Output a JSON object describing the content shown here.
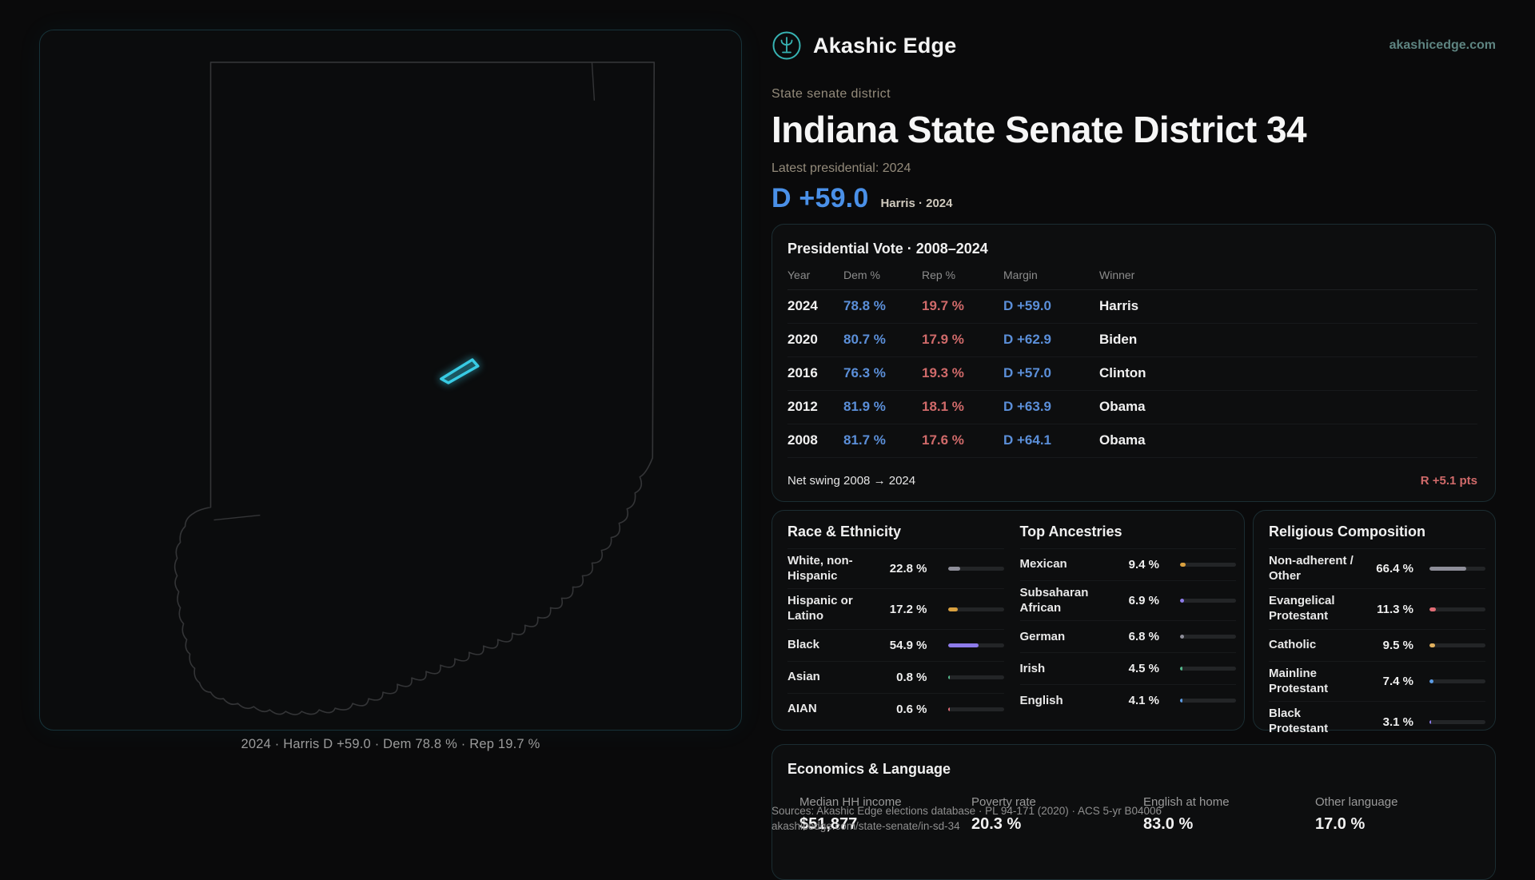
{
  "header": {
    "brand": "Akashic Edge",
    "domain": "akashicedge.com"
  },
  "hero": {
    "kicker": "State senate district",
    "title": "Indiana State Senate District 34",
    "latest_label": "Latest presidential: 2024",
    "margin_big": "D +59.0",
    "margin_context": "Harris · 2024"
  },
  "map": {
    "caption": "2024 · Harris D +59.0 · Dem 78.8 % · Rep 19.7 %"
  },
  "presidential": {
    "title": "Presidential Vote · 2008–2024",
    "columns": [
      "Year",
      "Dem %",
      "Rep %",
      "Margin",
      "Winner"
    ],
    "rows": [
      {
        "year": "2024",
        "dem": "78.8 %",
        "rep": "19.7 %",
        "margin": "D +59.0",
        "winner": "Harris"
      },
      {
        "year": "2020",
        "dem": "80.7 %",
        "rep": "17.9 %",
        "margin": "D +62.9",
        "winner": "Biden"
      },
      {
        "year": "2016",
        "dem": "76.3 %",
        "rep": "19.3 %",
        "margin": "D +57.0",
        "winner": "Clinton"
      },
      {
        "year": "2012",
        "dem": "81.9 %",
        "rep": "18.1 %",
        "margin": "D +63.9",
        "winner": "Obama"
      },
      {
        "year": "2008",
        "dem": "81.7 %",
        "rep": "17.6 %",
        "margin": "D +64.1",
        "winner": "Obama"
      }
    ],
    "net_swing_label": "Net swing 2008 → 2024",
    "net_swing_value": "R +5.1 pts"
  },
  "demographics": {
    "race": {
      "title": "Race & Ethnicity",
      "rows": [
        {
          "label": "White, non-Hispanic",
          "value": "22.8 %",
          "pct": 22.8,
          "color": "#8e8e99"
        },
        {
          "label": "Hispanic or Latino",
          "value": "17.2 %",
          "pct": 17.2,
          "color": "#d9a03f"
        },
        {
          "label": "Black",
          "value": "54.9 %",
          "pct": 54.9,
          "color": "#8d7bea"
        },
        {
          "label": "Asian",
          "value": "0.8 %",
          "pct": 0.8,
          "color": "#54b98c"
        },
        {
          "label": "AIAN",
          "value": "0.6 %",
          "pct": 0.6,
          "color": "#e06c75"
        }
      ]
    },
    "ancestries": {
      "title": "Top Ancestries",
      "rows": [
        {
          "label": "Mexican",
          "value": "9.4 %",
          "pct": 9.4,
          "color": "#d9a03f"
        },
        {
          "label": "Subsaharan African",
          "value": "6.9 %",
          "pct": 6.9,
          "color": "#8d7bea"
        },
        {
          "label": "German",
          "value": "6.8 %",
          "pct": 6.8,
          "color": "#8e8e99"
        },
        {
          "label": "Irish",
          "value": "4.5 %",
          "pct": 4.5,
          "color": "#54b98c"
        },
        {
          "label": "English",
          "value": "4.1 %",
          "pct": 4.1,
          "color": "#5b9ce6"
        }
      ]
    },
    "religion": {
      "title": "Religious Composition",
      "rows": [
        {
          "label": "Non-adherent / Other",
          "value": "66.4 %",
          "pct": 66.4,
          "color": "#8e8e99"
        },
        {
          "label": "Evangelical Protestant",
          "value": "11.3 %",
          "pct": 11.3,
          "color": "#e06c75"
        },
        {
          "label": "Catholic",
          "value": "9.5 %",
          "pct": 9.5,
          "color": "#e0b05e"
        },
        {
          "label": "Mainline Protestant",
          "value": "7.4 %",
          "pct": 7.4,
          "color": "#5b9ce6"
        },
        {
          "label": "Black Protestant",
          "value": "3.1 %",
          "pct": 3.1,
          "color": "#8d7bea"
        }
      ]
    }
  },
  "economics": {
    "title": "Economics & Language",
    "stats": [
      {
        "label": "Median HH income",
        "value": "$51,877"
      },
      {
        "label": "Poverty rate",
        "value": "20.3 %"
      },
      {
        "label": "English at home",
        "value": "83.0 %"
      },
      {
        "label": "Other language",
        "value": "17.0 %"
      }
    ]
  },
  "footer": {
    "line1": "Sources: Akashic Edge elections database · PL 94-171 (2020) · ACS 5-yr B04006",
    "line2": "akashicedge.com/state-senate/in-sd-34"
  },
  "colors": {
    "dem": "#5b8fd9",
    "dem_bright": "#4a90e8",
    "rep": "#d06a6a",
    "district": "#38cbe4",
    "brand": "#37b3b3"
  }
}
